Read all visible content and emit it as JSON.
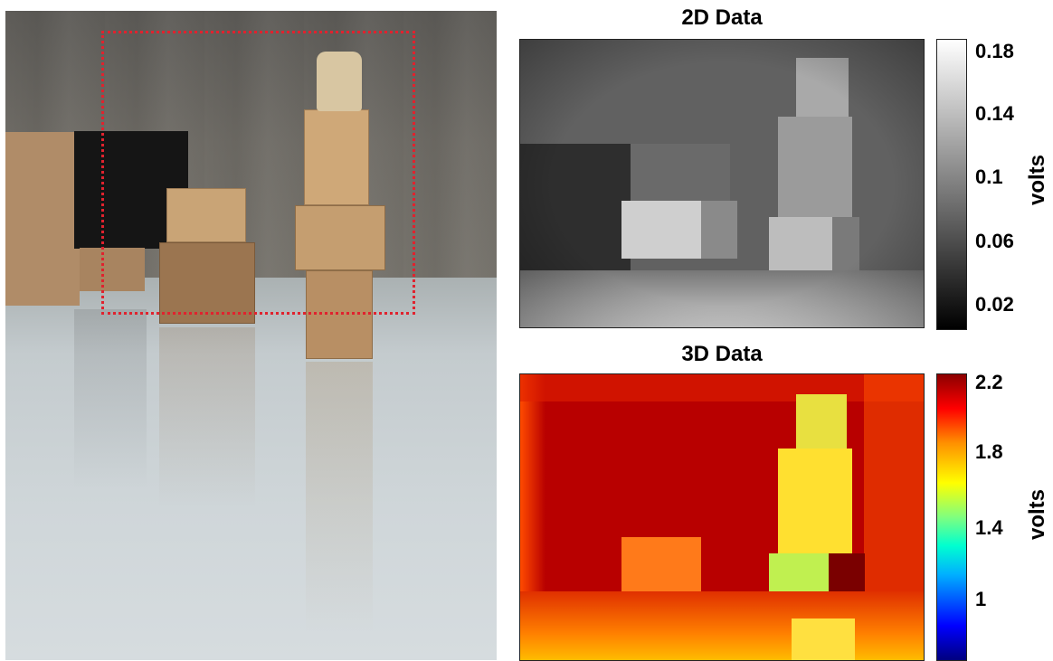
{
  "photo": {
    "description_icon": "photo-scene",
    "roi_color": "#e0222e"
  },
  "panel_2d": {
    "title": "2D Data",
    "colormap": "gray",
    "colorbar": {
      "label": "volts",
      "ticks": [
        "0.18",
        "0.14",
        "0.1",
        "0.06",
        "0.02"
      ],
      "range": [
        0.0,
        0.185
      ]
    }
  },
  "panel_3d": {
    "title": "3D Data",
    "colormap": "jet",
    "colorbar": {
      "label": "volts",
      "ticks": [
        "2.2",
        "1.8",
        "1.4",
        "1"
      ],
      "range": [
        0.75,
        2.25
      ]
    }
  }
}
